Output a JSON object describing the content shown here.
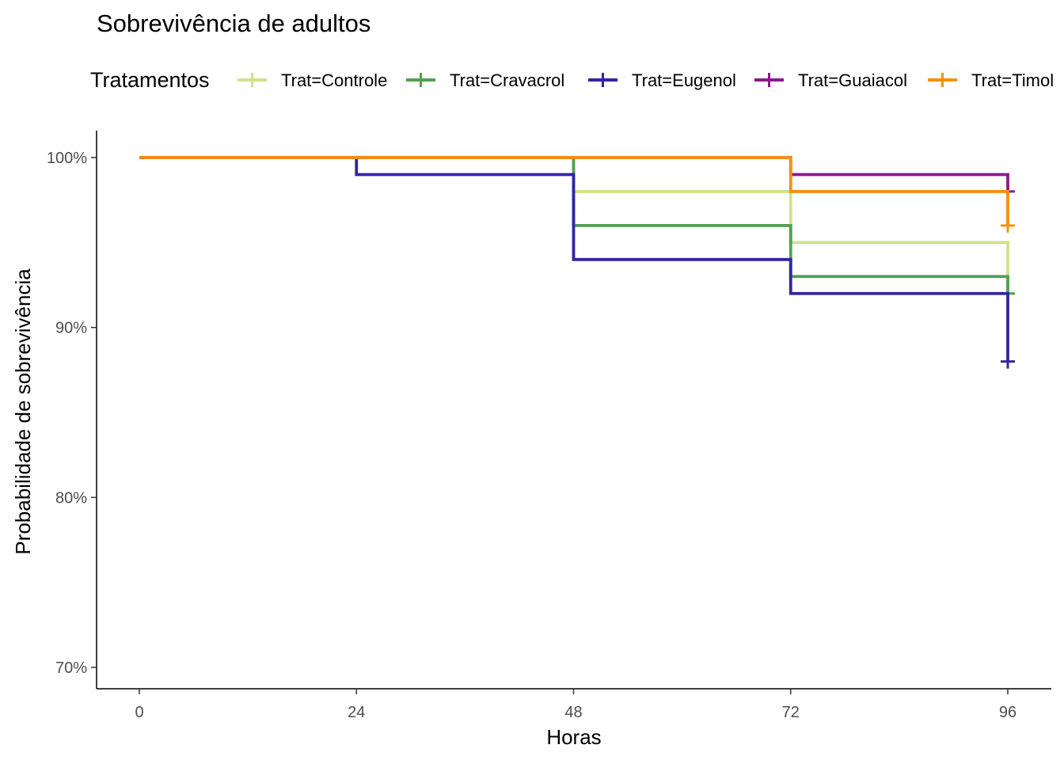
{
  "chart_data": {
    "type": "line",
    "step": true,
    "title": "Sobrevivência de adultos",
    "xlabel": "Horas",
    "ylabel": "Probabilidade de sobrevivência",
    "legend_title": "Tratamentos",
    "legend_position": "top",
    "xlim": [
      0,
      96
    ],
    "ylim": [
      0.7,
      1.0
    ],
    "x_ticks": [
      0,
      24,
      48,
      72,
      96
    ],
    "x_tick_labels": [
      "0",
      "24",
      "48",
      "72",
      "96"
    ],
    "y_ticks": [
      0.7,
      0.8,
      0.9,
      1.0
    ],
    "y_tick_labels": [
      "70%",
      "80%",
      "90%",
      "100%"
    ],
    "grid": false,
    "series": [
      {
        "name": "Trat=Controle",
        "color": "#cfe28a",
        "x": [
          0,
          48,
          72,
          96
        ],
        "y": [
          1.0,
          0.98,
          0.95,
          0.92
        ],
        "censor": {
          "x": 96,
          "y": 0.92
        }
      },
      {
        "name": "Trat=Cravacrol",
        "color": "#4ea24e",
        "x": [
          0,
          48,
          72,
          96
        ],
        "y": [
          1.0,
          0.96,
          0.93,
          0.92
        ],
        "censor": {
          "x": 96,
          "y": 0.92
        }
      },
      {
        "name": "Trat=Eugenol",
        "color": "#3324a3",
        "x": [
          0,
          24,
          48,
          72,
          96
        ],
        "y": [
          1.0,
          0.99,
          0.94,
          0.92,
          0.88
        ],
        "censor": {
          "x": 96,
          "y": 0.88
        }
      },
      {
        "name": "Trat=Guaiacol",
        "color": "#8a1a8c",
        "x": [
          0,
          72,
          96
        ],
        "y": [
          1.0,
          0.99,
          0.98
        ],
        "censor": {
          "x": 96,
          "y": 0.98
        }
      },
      {
        "name": "Trat=Timol",
        "color": "#f7900d",
        "x": [
          0,
          72,
          96
        ],
        "y": [
          1.0,
          0.98,
          0.96
        ],
        "censor": {
          "x": 96,
          "y": 0.96
        }
      }
    ]
  }
}
